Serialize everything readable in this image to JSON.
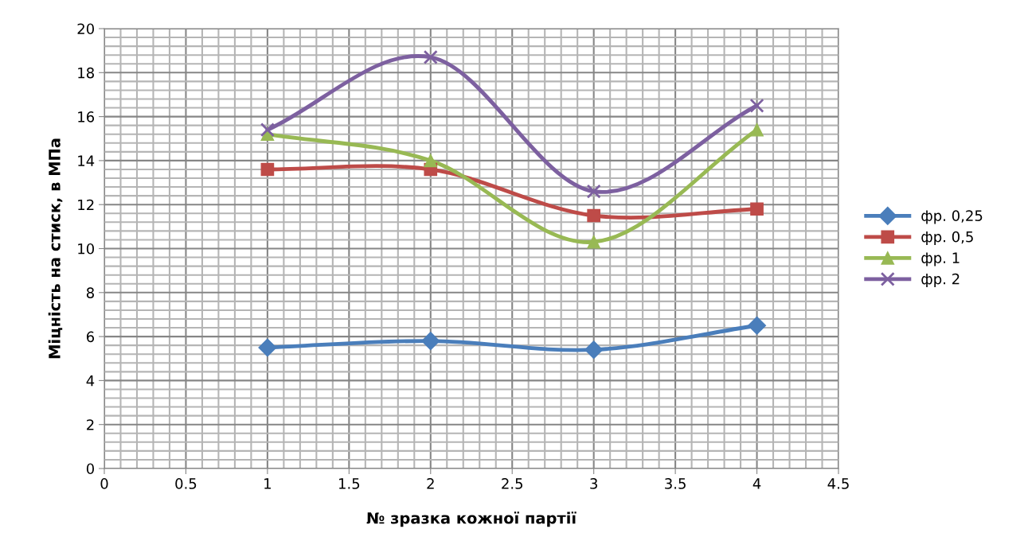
{
  "chart_data": {
    "type": "line",
    "xlabel": "№ зразка кожної партії",
    "ylabel": "Міцність на стиск, в МПа",
    "x": [
      1,
      2,
      3,
      4
    ],
    "xlim": [
      0,
      4.5
    ],
    "xticks": [
      0,
      0.5,
      1,
      1.5,
      2,
      2.5,
      3,
      3.5,
      4,
      4.5
    ],
    "ylim": [
      0,
      20
    ],
    "yticks": [
      0,
      2,
      4,
      6,
      8,
      10,
      12,
      14,
      16,
      18,
      20
    ],
    "grid": true,
    "legend": "right",
    "line_style": "solid",
    "series": [
      {
        "name": "фр. 0,25",
        "color": "#4a7ebb",
        "marker": "diamond",
        "values": [
          5.5,
          5.8,
          5.4,
          6.5
        ]
      },
      {
        "name": "фр. 0,5",
        "color": "#be4b48",
        "marker": "square",
        "values": [
          13.6,
          13.6,
          11.5,
          11.8
        ]
      },
      {
        "name": "фр. 1",
        "color": "#98b954",
        "marker": "triangle",
        "values": [
          15.2,
          14.0,
          10.3,
          15.4
        ]
      },
      {
        "name": "фр. 2",
        "color": "#7d60a0",
        "marker": "cross",
        "values": [
          15.4,
          18.7,
          12.6,
          16.5
        ]
      }
    ]
  }
}
